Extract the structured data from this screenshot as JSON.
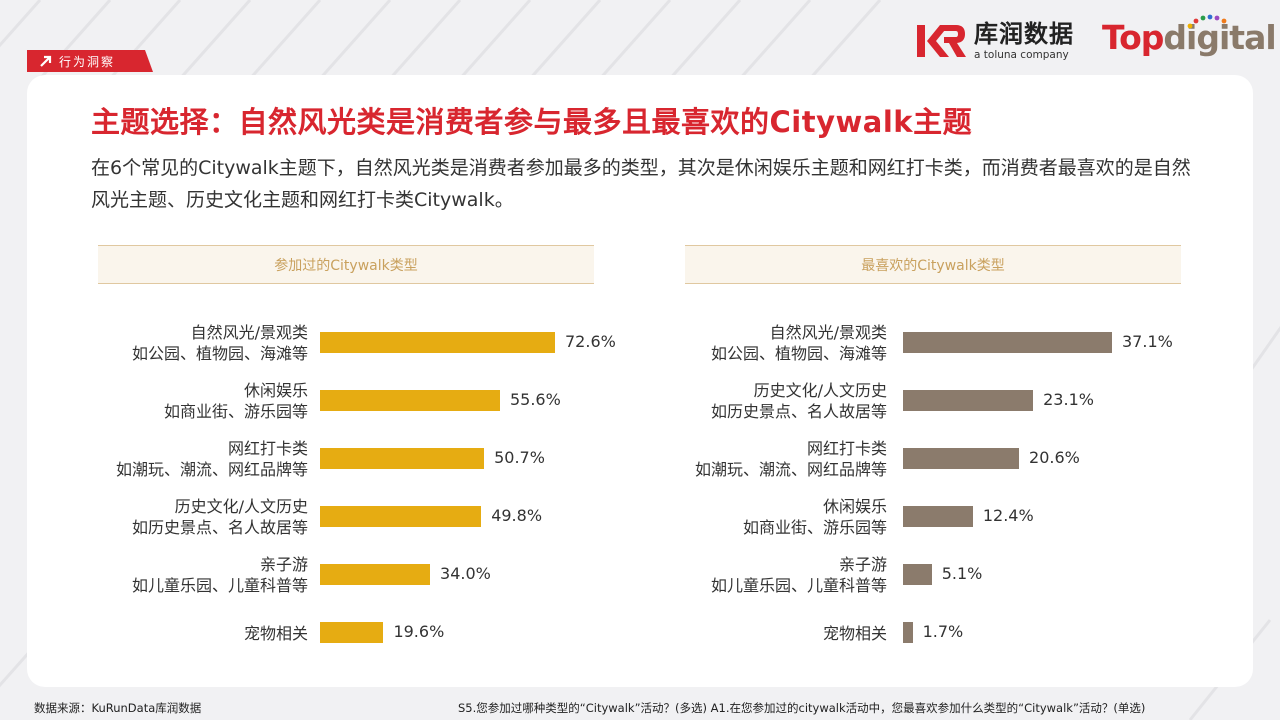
{
  "tag": {
    "label": "行为洞察"
  },
  "logos": {
    "kurun_cn": "库润数据",
    "kurun_en": "a toluna company",
    "topdigital_a": "Top",
    "topdigital_b": "digital"
  },
  "title": "主题选择：自然风光类是消费者参与最多且最喜欢的Citywalk主题",
  "description": "在6个常见的Citywalk主题下，自然风光类是消费者参加最多的类型，其次是休闲娱乐主题和网红打卡类，而消费者最喜欢的是自然风光主题、历史文化主题和网红打卡类Citywalk。",
  "colors": {
    "accent": "#d8262f",
    "bar_left": "#e6ac12",
    "bar_right": "#8b7b6c",
    "header_text": "#c9a15e"
  },
  "chart_data": [
    {
      "type": "bar",
      "orientation": "horizontal",
      "title": "参加过的Citywalk类型",
      "ylim": [
        0,
        100
      ],
      "unit": "%",
      "categories": [
        {
          "name": "自然风光/景观类",
          "sub": "如公园、植物园、海滩等",
          "value": 72.6,
          "label": "72.6%"
        },
        {
          "name": "休闲娱乐",
          "sub": "如商业街、游乐园等",
          "value": 55.6,
          "label": "55.6%"
        },
        {
          "name": "网红打卡类",
          "sub": "如潮玩、潮流、网红品牌等",
          "value": 50.7,
          "label": "50.7%"
        },
        {
          "name": "历史文化/人文历史",
          "sub": "如历史景点、名人故居等",
          "value": 49.8,
          "label": "49.8%"
        },
        {
          "name": "亲子游",
          "sub": "如儿童乐园、儿童科普等",
          "value": 34.0,
          "label": "34.0%"
        },
        {
          "name": "宠物相关",
          "sub": "",
          "value": 19.6,
          "label": "19.6%"
        }
      ]
    },
    {
      "type": "bar",
      "orientation": "horizontal",
      "title": "最喜欢的Citywalk类型",
      "ylim": [
        0,
        100
      ],
      "unit": "%",
      "categories": [
        {
          "name": "自然风光/景观类",
          "sub": "如公园、植物园、海滩等",
          "value": 37.1,
          "label": "37.1%"
        },
        {
          "name": "历史文化/人文历史",
          "sub": "如历史景点、名人故居等",
          "value": 23.1,
          "label": "23.1%"
        },
        {
          "name": "网红打卡类",
          "sub": "如潮玩、潮流、网红品牌等",
          "value": 20.6,
          "label": "20.6%"
        },
        {
          "name": "休闲娱乐",
          "sub": "如商业街、游乐园等",
          "value": 12.4,
          "label": "12.4%"
        },
        {
          "name": "亲子游",
          "sub": "如儿童乐园、儿童科普等",
          "value": 5.1,
          "label": "5.1%"
        },
        {
          "name": "宠物相关",
          "sub": "",
          "value": 1.7,
          "label": "1.7%"
        }
      ]
    }
  ],
  "footer": {
    "source": "数据来源：KuRunData库润数据",
    "questions": "S5.您参加过哪种类型的“Citywalk”活动？(多选) A1.在您参加过的citywalk活动中，您最喜欢参加什么类型的“Citywalk”活动？(单选)"
  }
}
